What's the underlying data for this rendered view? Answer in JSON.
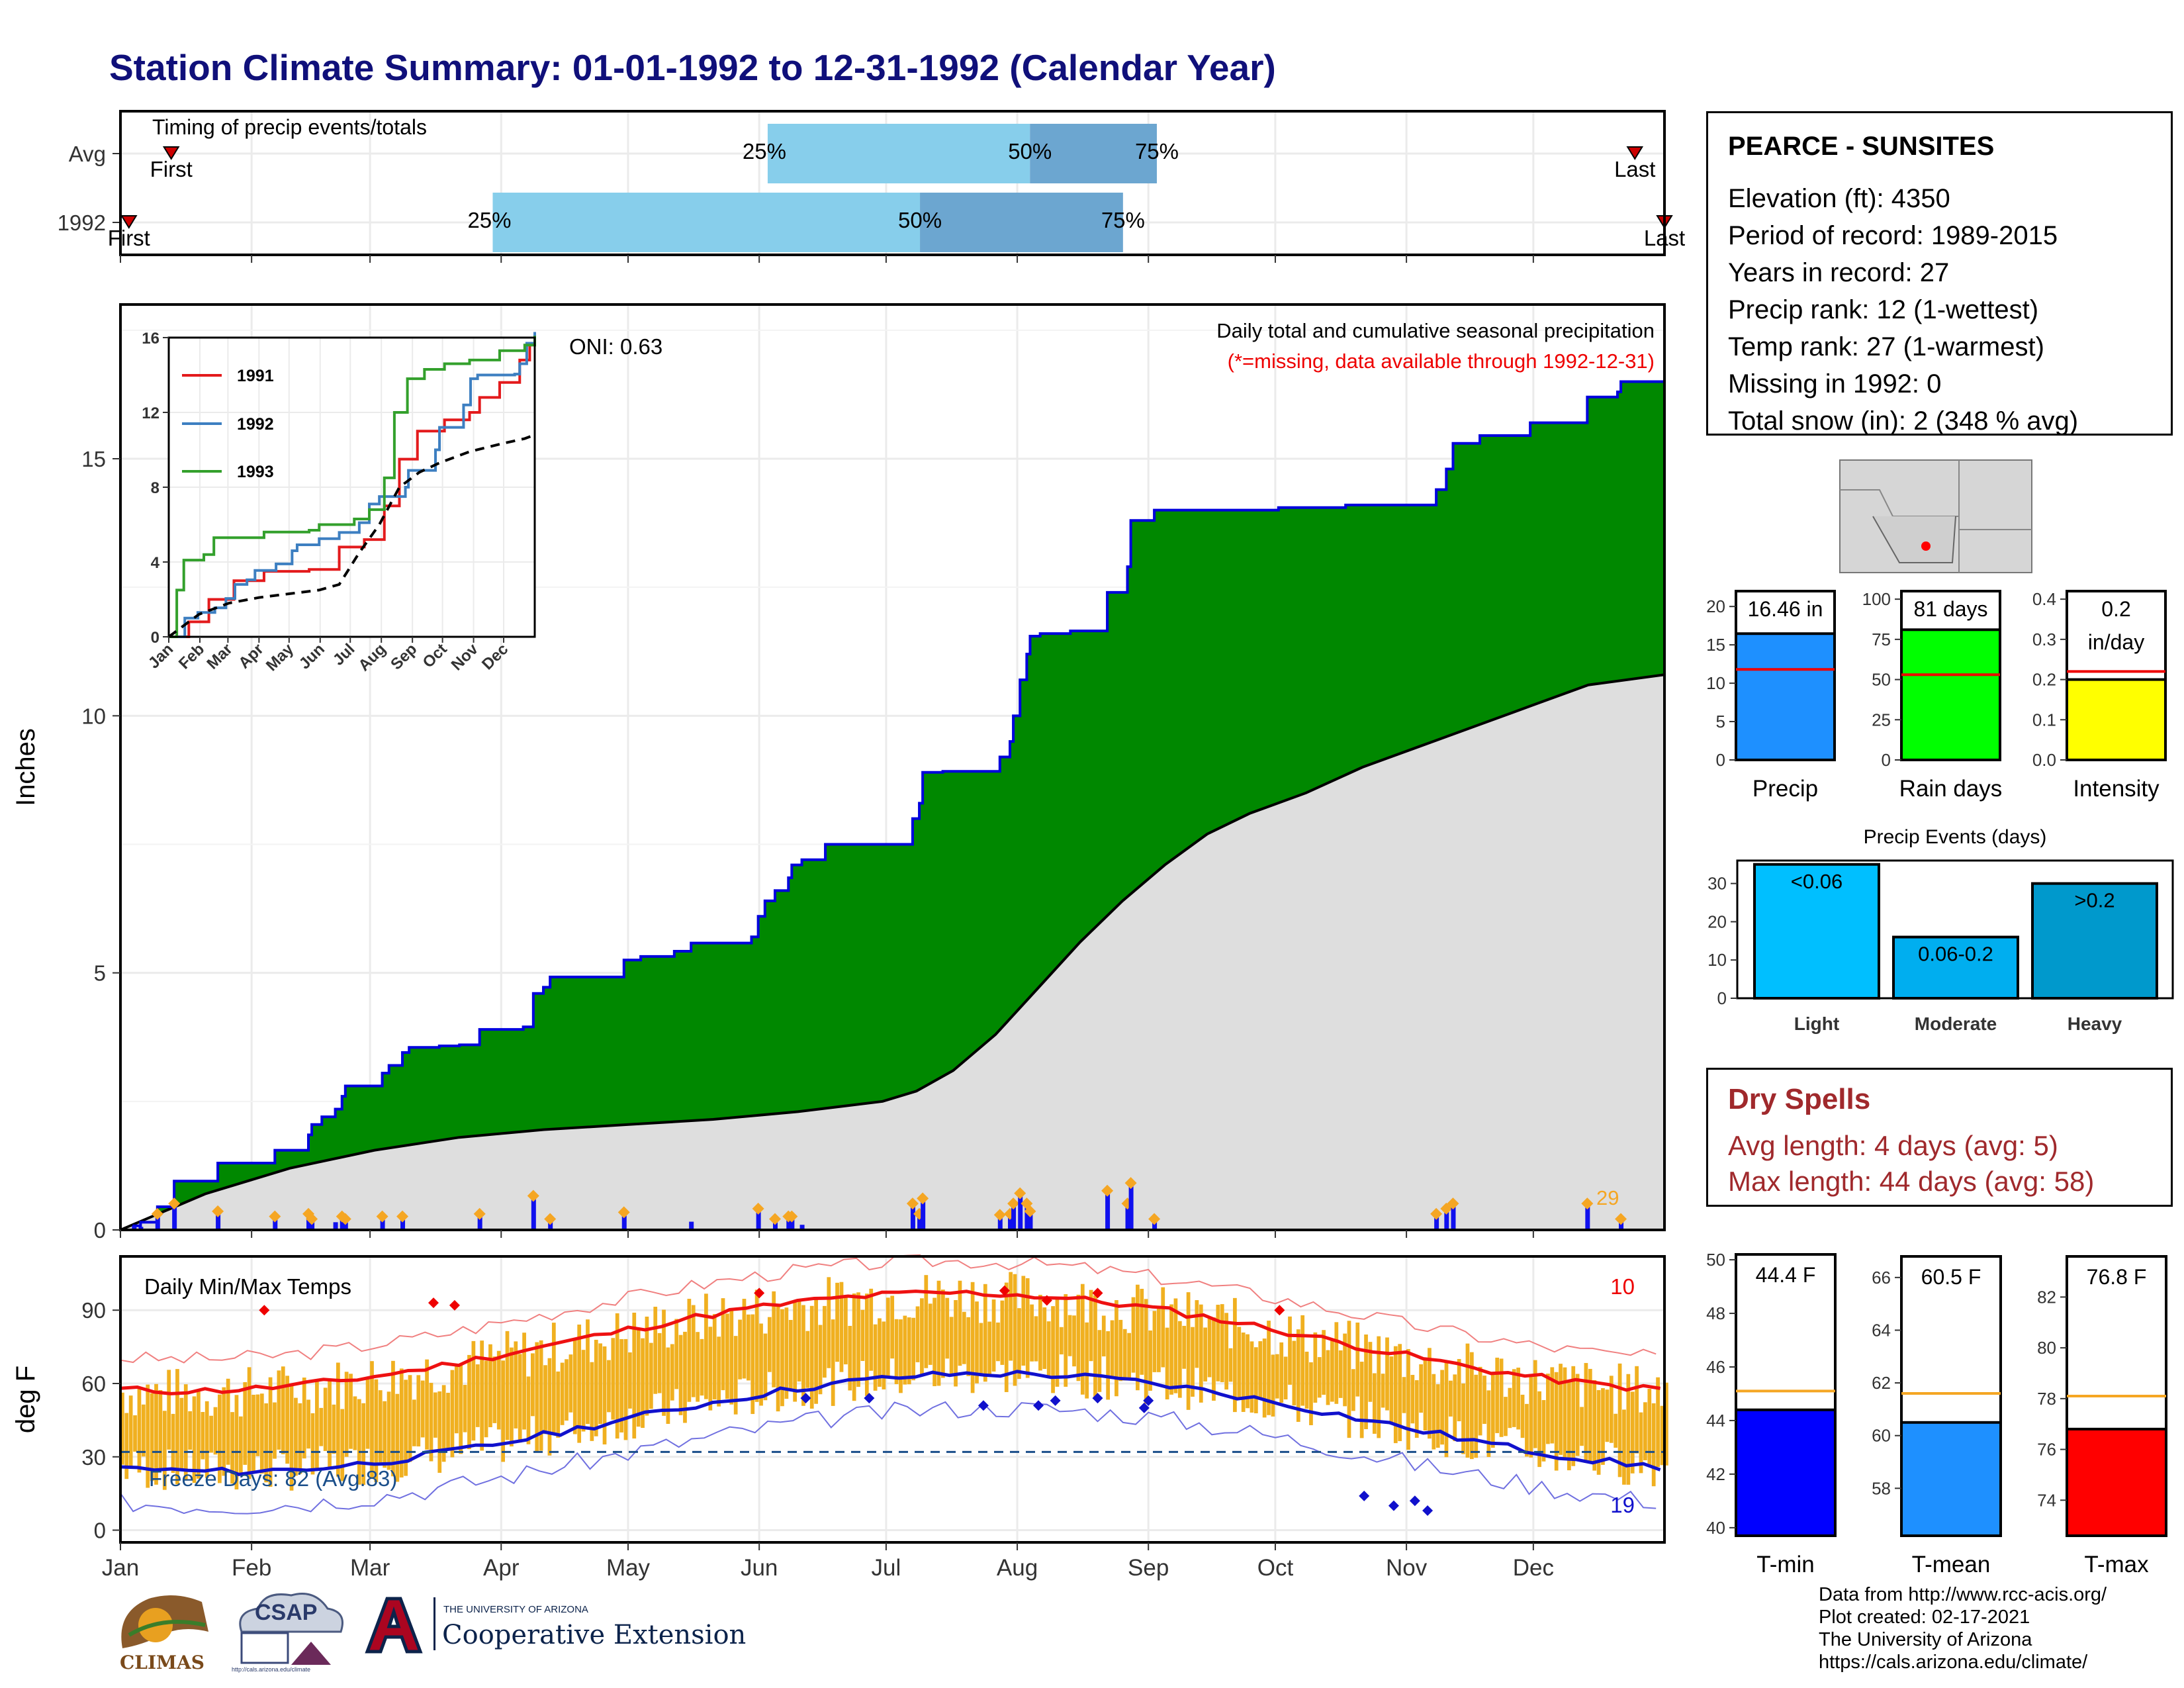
{
  "title": "Station Climate Summary: 01-01-1992 to 12-31-1992 (Calendar Year)",
  "colors": {
    "title": "#10107a",
    "precip_fill": "#008800",
    "precip_line": "#0000dd",
    "avg_fill": "#dedede",
    "orange": "#f5a623",
    "tmax": "#ee1111",
    "tmin": "#1111cc",
    "bar_gold": "#f0b020"
  },
  "station": {
    "name": "PEARCE - SUNSITES",
    "lines": [
      "Elevation (ft): 4350",
      "Period of record: 1989-2015",
      "Years in record: 27",
      "Precip rank: 12 (1-wettest)",
      "Temp rank: 27 (1-warmest)",
      "Missing in 1992: 0",
      "Total snow (in): 2 (348 % avg)"
    ]
  },
  "dry_spells": {
    "title": "Dry Spells",
    "lines": [
      "Avg length: 4 days (avg: 5)",
      "Max length: 44 days (avg: 58)"
    ]
  },
  "credits": [
    "Data from http://www.rcc-acis.org/",
    "Plot created: 02-17-2021",
    "The University of Arizona",
    "https://cals.arizona.edu/climate/"
  ],
  "logos": {
    "climas": "CLIMAS",
    "csap": "CSAP",
    "csap_url": "http://cals.arizona.edu/climate",
    "ua_small": "THE UNIVERSITY OF ARIZONA",
    "ua_big": "Cooperative Extension"
  },
  "chart_data": [
    {
      "type": "bar",
      "name": "timing",
      "title": "Timing of precip events/totals",
      "categories": [
        "Avg",
        "1992"
      ],
      "axis_range_doy": [
        1,
        366
      ],
      "avg": {
        "first_doy": 13,
        "q25_doy": 154,
        "q50_doy": 216,
        "q75_doy": 246,
        "last_doy": 359
      },
      "y1992": {
        "first_doy": 3,
        "q25_doy": 89,
        "q50_doy": 190,
        "q75_doy": 238,
        "last_doy": 366
      },
      "labels": {
        "first": "First",
        "last": "Last",
        "q25": "25%",
        "q50": "50%",
        "q75": "75%"
      }
    },
    {
      "type": "area",
      "name": "cumulative-precip",
      "title": "Daily total and cumulative seasonal precipitation",
      "note": "(*=missing, data available through 1992-12-31)",
      "ylabel": "Inches",
      "ylim": [
        0,
        18
      ],
      "yticks": [
        0,
        5,
        10,
        15
      ],
      "oni": "ONI: 0.63",
      "daily_count": "29",
      "months": [
        "Jan",
        "Feb",
        "Mar",
        "Apr",
        "May",
        "Jun",
        "Jul",
        "Aug",
        "Sep",
        "Oct",
        "Nov",
        "Dec"
      ],
      "cum_1992": [
        [
          1,
          0
        ],
        [
          4,
          0.08
        ],
        [
          6,
          0.15
        ],
        [
          11,
          0.45
        ],
        [
          16,
          0.95
        ],
        [
          26,
          0.95
        ],
        [
          29,
          1.3
        ],
        [
          43,
          1.3
        ],
        [
          46,
          1.55
        ],
        [
          53,
          1.55
        ],
        [
          56,
          1.85
        ],
        [
          57,
          2.05
        ],
        [
          60,
          2.2
        ],
        [
          64,
          2.35
        ],
        [
          66,
          2.6
        ],
        [
          67,
          2.8
        ],
        [
          77,
          2.8
        ],
        [
          78,
          3.05
        ],
        [
          80,
          3.2
        ],
        [
          84,
          3.45
        ],
        [
          86,
          3.55
        ],
        [
          95,
          3.58
        ],
        [
          101,
          3.6
        ],
        [
          107,
          3.9
        ],
        [
          120,
          3.9
        ],
        [
          120,
          3.95
        ],
        [
          123,
          4.6
        ],
        [
          126,
          4.72
        ],
        [
          128,
          4.92
        ],
        [
          148,
          4.92
        ],
        [
          150,
          5.25
        ],
        [
          155,
          5.32
        ],
        [
          165,
          5.42
        ],
        [
          170,
          5.58
        ],
        [
          187,
          5.58
        ],
        [
          188,
          5.7
        ],
        [
          190,
          6.1
        ],
        [
          192,
          6.4
        ],
        [
          195,
          6.6
        ],
        [
          199,
          6.85
        ],
        [
          200,
          7.1
        ],
        [
          203,
          7.2
        ],
        [
          210,
          7.5
        ],
        [
          233,
          7.5
        ],
        [
          236,
          8.0
        ],
        [
          238,
          8.3
        ],
        [
          239,
          8.9
        ],
        [
          245,
          8.92
        ],
        [
          258,
          8.92
        ],
        [
          262,
          9.2
        ],
        [
          265,
          9.5
        ],
        [
          266,
          10.0
        ],
        [
          268,
          10.7
        ],
        [
          270,
          11.2
        ],
        [
          271,
          11.55
        ],
        [
          274,
          11.6
        ],
        [
          283,
          11.65
        ],
        [
          293,
          11.65
        ],
        [
          294,
          12.4
        ],
        [
          300,
          12.9
        ],
        [
          301,
          13.8
        ],
        [
          305,
          13.8
        ],
        [
          308,
          14.0
        ],
        [
          335,
          14.0
        ],
        [
          345,
          14.05
        ],
        [
          365,
          14.1
        ],
        [
          389,
          14.1
        ],
        [
          392,
          14.4
        ],
        [
          395,
          14.8
        ],
        [
          397,
          15.3
        ],
        [
          405,
          15.45
        ],
        [
          420,
          15.7
        ],
        [
          437,
          16.2
        ],
        [
          446,
          16.3
        ],
        [
          447,
          16.5
        ],
        [
          460,
          16.5
        ]
      ],
      "daily_1992": [
        [
          4,
          0.08
        ],
        [
          6,
          0.06
        ],
        [
          11,
          0.3
        ],
        [
          16,
          0.5
        ],
        [
          29,
          0.35
        ],
        [
          46,
          0.25
        ],
        [
          56,
          0.3
        ],
        [
          57,
          0.2
        ],
        [
          64,
          0.15
        ],
        [
          66,
          0.25
        ],
        [
          67,
          0.2
        ],
        [
          78,
          0.25
        ],
        [
          84,
          0.25
        ],
        [
          107,
          0.3
        ],
        [
          123,
          0.65
        ],
        [
          128,
          0.2
        ],
        [
          150,
          0.33
        ],
        [
          170,
          0.16
        ],
        [
          190,
          0.4
        ],
        [
          195,
          0.2
        ],
        [
          199,
          0.25
        ],
        [
          200,
          0.25
        ],
        [
          203,
          0.1
        ],
        [
          236,
          0.5
        ],
        [
          238,
          0.3
        ],
        [
          239,
          0.6
        ],
        [
          262,
          0.28
        ],
        [
          265,
          0.3
        ],
        [
          266,
          0.5
        ],
        [
          268,
          0.7
        ],
        [
          270,
          0.5
        ],
        [
          271,
          0.35
        ],
        [
          294,
          0.75
        ],
        [
          300,
          0.5
        ],
        [
          301,
          0.9
        ],
        [
          308,
          0.2
        ],
        [
          392,
          0.3
        ],
        [
          395,
          0.4
        ],
        [
          397,
          0.5
        ],
        [
          437,
          0.5
        ],
        [
          447,
          0.2
        ]
      ]
    },
    {
      "type": "line",
      "name": "inset-cumulative",
      "categories": [
        "Jan",
        "Feb",
        "Mar",
        "Apr",
        "May",
        "Jun",
        "Jul",
        "Aug",
        "Sep",
        "Oct",
        "Nov",
        "Dec"
      ],
      "ylim": [
        0,
        16
      ],
      "yticks": [
        0,
        4,
        8,
        12,
        16
      ],
      "series": [
        {
          "name": "1991",
          "color": "#e31a1c",
          "points": [
            [
              0,
              0
            ],
            [
              20,
              0.8
            ],
            [
              40,
              2
            ],
            [
              65,
              3
            ],
            [
              95,
              3.5
            ],
            [
              140,
              3.6
            ],
            [
              170,
              4.8
            ],
            [
              195,
              5.2
            ],
            [
              215,
              7
            ],
            [
              230,
              9.5
            ],
            [
              248,
              11
            ],
            [
              275,
              11.6
            ],
            [
              300,
              12
            ],
            [
              310,
              12.8
            ],
            [
              330,
              13.6
            ],
            [
              350,
              14.8
            ],
            [
              360,
              15.6
            ],
            [
              365,
              16.1
            ]
          ]
        },
        {
          "name": "1992",
          "color": "#3d7fc1",
          "points": [
            [
              0,
              0
            ],
            [
              16,
              1
            ],
            [
              29,
              1.3
            ],
            [
              46,
              1.55
            ],
            [
              57,
              2.05
            ],
            [
              66,
              2.8
            ],
            [
              78,
              3.05
            ],
            [
              86,
              3.55
            ],
            [
              107,
              3.9
            ],
            [
              123,
              4.6
            ],
            [
              128,
              4.92
            ],
            [
              150,
              5.25
            ],
            [
              170,
              5.58
            ],
            [
              190,
              6.1
            ],
            [
              200,
              7.1
            ],
            [
              210,
              7.5
            ],
            [
              236,
              8
            ],
            [
              239,
              8.9
            ],
            [
              266,
              10
            ],
            [
              270,
              11.2
            ],
            [
              294,
              12.4
            ],
            [
              301,
              13.8
            ],
            [
              308,
              14
            ],
            [
              335,
              14
            ],
            [
              345,
              14.05
            ],
            [
              350,
              14.6
            ],
            [
              357,
              15.7
            ],
            [
              365,
              16.3
            ]
          ]
        },
        {
          "name": "1993",
          "color": "#33a02c",
          "points": [
            [
              0,
              0
            ],
            [
              8,
              2.5
            ],
            [
              15,
              4.1
            ],
            [
              35,
              4.4
            ],
            [
              45,
              5.3
            ],
            [
              80,
              5.3
            ],
            [
              95,
              5.6
            ],
            [
              140,
              5.7
            ],
            [
              150,
              6
            ],
            [
              185,
              6.3
            ],
            [
              200,
              6.8
            ],
            [
              215,
              8.5
            ],
            [
              225,
              12
            ],
            [
              238,
              13.8
            ],
            [
              255,
              14.3
            ],
            [
              275,
              14.6
            ],
            [
              300,
              14.8
            ],
            [
              330,
              15.3
            ],
            [
              355,
              15.6
            ],
            [
              365,
              16.1
            ]
          ]
        },
        {
          "name": "avg",
          "color": "#000000",
          "dashed": true,
          "points": [
            [
              0,
              0
            ],
            [
              30,
              1.2
            ],
            [
              60,
              1.8
            ],
            [
              90,
              2.1
            ],
            [
              120,
              2.3
            ],
            [
              150,
              2.5
            ],
            [
              170,
              2.8
            ],
            [
              190,
              4.5
            ],
            [
              210,
              6
            ],
            [
              230,
              8
            ],
            [
              250,
              8.8
            ],
            [
              270,
              9.3
            ],
            [
              300,
              9.9
            ],
            [
              330,
              10.3
            ],
            [
              355,
              10.6
            ],
            [
              365,
              10.8
            ]
          ]
        }
      ]
    },
    {
      "type": "line",
      "name": "daily-temps",
      "title": "Daily Min/Max Temps",
      "ylabel": "deg F",
      "ylim": [
        -5,
        112
      ],
      "yticks": [
        0,
        30,
        60,
        90
      ],
      "months": [
        "Jan",
        "Feb",
        "Mar",
        "Apr",
        "May",
        "Jun",
        "Jul",
        "Aug",
        "Sep",
        "Oct",
        "Nov",
        "Dec"
      ],
      "freeze_days": "Freeze Days: 82 (Avg:83)",
      "count_max": "10",
      "count_min": "19",
      "freeze_line": 32
    },
    {
      "type": "bar",
      "name": "precip-total",
      "categories": [
        "Precip"
      ],
      "values": [
        16.46
      ],
      "label": "16.46 in",
      "avg": 11.8,
      "ylim": [
        0,
        22
      ],
      "yticks": [
        0,
        5,
        10,
        15,
        20
      ],
      "color": "#1e90ff"
    },
    {
      "type": "bar",
      "name": "rain-days",
      "categories": [
        "Rain days"
      ],
      "values": [
        81
      ],
      "label": "81 days",
      "avg": 53,
      "ylim": [
        0,
        105
      ],
      "yticks": [
        0,
        25,
        50,
        75,
        100
      ],
      "color": "#00ff00"
    },
    {
      "type": "bar",
      "name": "intensity",
      "categories": [
        "Intensity"
      ],
      "values": [
        0.2
      ],
      "label": "0.2",
      "label2": "in/day",
      "avg": 0.22,
      "ylim": [
        0,
        0.42
      ],
      "yticks": [
        0.0,
        0.1,
        0.2,
        0.3,
        0.4
      ],
      "color": "#ffff00"
    },
    {
      "type": "bar",
      "name": "precip-events",
      "title": "Precip Events (days)",
      "categories": [
        "Light",
        "Moderate",
        "Heavy"
      ],
      "values": [
        35,
        16,
        30
      ],
      "bar_labels": [
        "<0.06",
        "0.06-0.2",
        ">0.2"
      ],
      "colors": [
        "#00bfff",
        "#00aeef",
        "#0099cc"
      ],
      "ylim": [
        0,
        36
      ],
      "yticks": [
        0,
        10,
        20,
        30
      ]
    },
    {
      "type": "bar",
      "name": "temp-mean-bars",
      "panels": [
        {
          "category": "T-min",
          "value": 44.4,
          "label": "44.4 F",
          "avg": 45.1,
          "ylim": [
            39.7,
            50.2
          ],
          "yticks": [
            40,
            42,
            44,
            46,
            48,
            50
          ],
          "color": "#0000ff"
        },
        {
          "category": "T-mean",
          "value": 60.5,
          "label": "60.5 F",
          "avg": 61.6,
          "ylim": [
            56.2,
            66.8
          ],
          "yticks": [
            58,
            60,
            62,
            64,
            66
          ],
          "color": "#1e90ff"
        },
        {
          "category": "T-max",
          "value": 76.8,
          "label": "76.8 F",
          "avg": 78.1,
          "ylim": [
            72.6,
            83.6
          ],
          "yticks": [
            74,
            76,
            78,
            80,
            82
          ],
          "color": "#ff0000"
        }
      ]
    }
  ]
}
